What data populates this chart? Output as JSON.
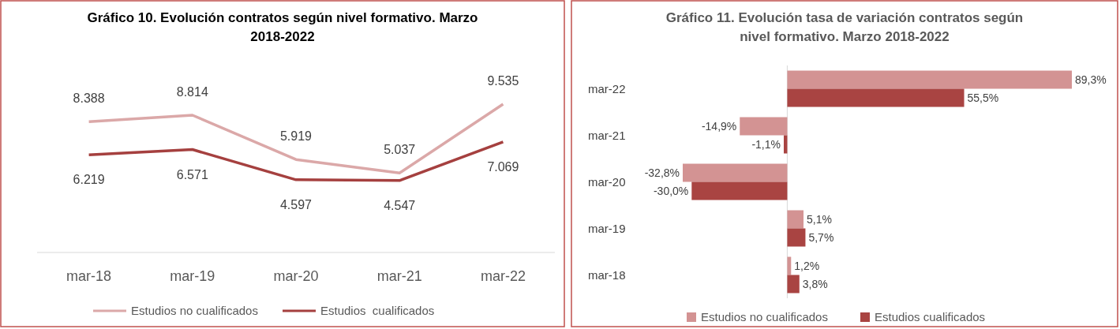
{
  "chart_data": [
    {
      "type": "line",
      "title": "Gráfico 10. Evolución contratos según nivel formativo. Marzo 2018-2022",
      "categories": [
        "mar-18",
        "mar-19",
        "mar-20",
        "mar-21",
        "mar-22"
      ],
      "series": [
        {
          "name": "Estudios no cualificados",
          "color": "#dba8a8",
          "values": [
            8388,
            8814,
            5919,
            5037,
            9535
          ],
          "value_labels": [
            "8.388",
            "8.814",
            "5.919",
            "5.037",
            "9.535"
          ]
        },
        {
          "name": "Estudios  cualificados",
          "color": "#a5403f",
          "values": [
            6219,
            6571,
            4597,
            4547,
            7069
          ],
          "value_labels": [
            "6.219",
            "6.571",
            "4.597",
            "4.547",
            "7.069"
          ]
        }
      ],
      "legend": "bottom",
      "marker": "none",
      "line_style": "solid"
    },
    {
      "type": "bar",
      "orientation": "horizontal",
      "title": "Gráfico 11. Evolución tasa de variación contratos según nivel formativo. Marzo 2018-2022",
      "categories": [
        "mar-22",
        "mar-21",
        "mar-20",
        "mar-19",
        "mar-18"
      ],
      "series": [
        {
          "name": "Estudios no cualificados",
          "color": "#d39393",
          "values": [
            89.3,
            -14.9,
            -32.8,
            5.1,
            1.2
          ],
          "value_labels": [
            "89,3%",
            "-14,9%",
            "-32,8%",
            "5,1%",
            "1,2%"
          ]
        },
        {
          "name": "Estudios cualificados",
          "color": "#a94442",
          "values": [
            55.5,
            -1.1,
            -30.0,
            5.7,
            3.8
          ],
          "value_labels": [
            "55,5%",
            "-1,1%",
            "-30,0%",
            "5,7%",
            "3,8%"
          ]
        }
      ],
      "legend": "bottom"
    }
  ]
}
